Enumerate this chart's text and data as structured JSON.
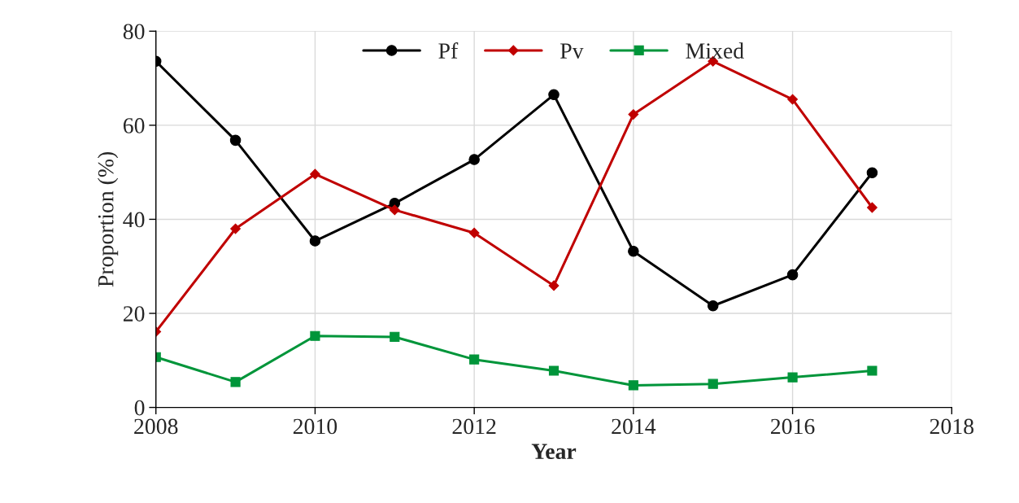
{
  "chart_data": {
    "type": "line",
    "xlabel": "Year",
    "ylabel": "Proportion (%)",
    "x": [
      2008,
      2009,
      2010,
      2011,
      2012,
      2013,
      2014,
      2015,
      2016,
      2017
    ],
    "series": [
      {
        "name": "Pf",
        "color": "#000000",
        "marker": "circle",
        "values": [
          73.6,
          56.8,
          35.4,
          43.4,
          52.7,
          66.5,
          33.2,
          21.6,
          28.2,
          49.9
        ]
      },
      {
        "name": "Pv",
        "color": "#c00000",
        "marker": "diamond",
        "values": [
          16.1,
          38.0,
          49.6,
          42.0,
          37.1,
          25.9,
          62.3,
          73.6,
          65.5,
          42.5
        ]
      },
      {
        "name": "Mixed",
        "color": "#00953a",
        "marker": "square",
        "values": [
          10.7,
          5.4,
          15.2,
          15.0,
          10.2,
          7.8,
          4.7,
          5.0,
          6.4,
          7.8
        ]
      }
    ],
    "xlim": [
      2008,
      2018
    ],
    "xticks": [
      2008,
      2010,
      2012,
      2014,
      2016,
      2018
    ],
    "ylim": [
      0,
      80
    ],
    "yticks": [
      0,
      20,
      40,
      60,
      80
    ],
    "grid": true,
    "legend": "top",
    "line_style": "solid"
  }
}
